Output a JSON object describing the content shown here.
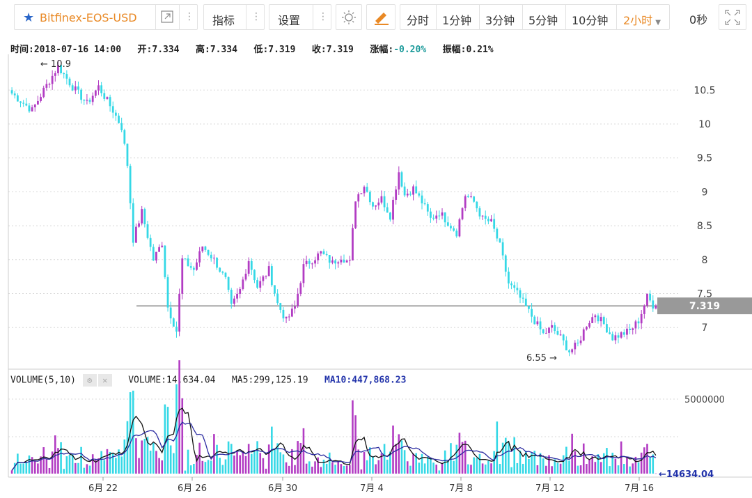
{
  "toolbar": {
    "symbol": "Bitfinex-EOS-USD",
    "indicators_label": "指标",
    "settings_label": "设置",
    "periods": [
      "分时",
      "1分钟",
      "3分钟",
      "5分钟",
      "10分钟"
    ],
    "active_period": "2小时",
    "countdown": "0秒"
  },
  "info": {
    "time_label": "时间:",
    "time": "2018-07-16 14:00",
    "open_label": "开:",
    "open": "7.334",
    "high_label": "高:",
    "high": "7.334",
    "low_label": "低:",
    "low": "7.319",
    "close_label": "收:",
    "close": "7.319",
    "change_label": "涨幅:",
    "change": "-0.20%",
    "amplitude_label": "振幅:",
    "amplitude": "0.21%"
  },
  "volume_info": {
    "title": "VOLUME(5,10)",
    "volume_label": "VOLUME:",
    "volume": "14,634.04",
    "ma5_label": "MA5:",
    "ma5": "299,125.19",
    "ma10_label": "MA10:",
    "ma10": "447,868.23"
  },
  "colors": {
    "up": "#b23cc3",
    "down": "#35d8e6",
    "accent": "#e98925",
    "ma5": "#111111",
    "ma10": "#2a2aa0"
  },
  "chart_data": {
    "type": "candlestick",
    "x_ticks": [
      "6月 22",
      "6月 26",
      "6月 30",
      "7月 4",
      "7月 8",
      "7月 12",
      "7月 16"
    ],
    "y_ticks": [
      "10.5",
      "10",
      "9.5",
      "9",
      "8.5",
      "8",
      "7.5",
      "7"
    ],
    "ylim": [
      6.55,
      10.9
    ],
    "annotations": {
      "max_label": "10.9",
      "min_label": "6.55",
      "last_price": "7.319"
    },
    "volume_ticks": [
      "5000000"
    ],
    "last_volume": "14634.04",
    "close_anchors": [
      [
        0,
        10.45
      ],
      [
        7,
        10.2
      ],
      [
        11,
        10.5
      ],
      [
        16,
        10.85
      ],
      [
        21,
        10.55
      ],
      [
        26,
        10.3
      ],
      [
        30,
        10.55
      ],
      [
        35,
        10.2
      ],
      [
        38,
        9.95
      ],
      [
        40,
        9.4
      ],
      [
        42,
        8.3
      ],
      [
        45,
        8.7
      ],
      [
        49,
        8.0
      ],
      [
        52,
        8.25
      ],
      [
        54,
        7.3
      ],
      [
        57,
        6.95
      ],
      [
        59,
        8.0
      ],
      [
        63,
        7.85
      ],
      [
        66,
        8.2
      ],
      [
        70,
        8.0
      ],
      [
        74,
        7.7
      ],
      [
        76,
        7.3
      ],
      [
        79,
        7.55
      ],
      [
        82,
        8.0
      ],
      [
        85,
        7.6
      ],
      [
        89,
        7.85
      ],
      [
        92,
        7.35
      ],
      [
        95,
        7.1
      ],
      [
        98,
        7.3
      ],
      [
        101,
        7.9
      ],
      [
        104,
        8.0
      ],
      [
        107,
        8.1
      ],
      [
        111,
        7.95
      ],
      [
        114,
        8.05
      ],
      [
        117,
        7.95
      ],
      [
        119,
        8.9
      ],
      [
        122,
        9.1
      ],
      [
        125,
        8.8
      ],
      [
        128,
        8.9
      ],
      [
        131,
        8.65
      ],
      [
        134,
        9.3
      ],
      [
        136,
        8.95
      ],
      [
        139,
        9.05
      ],
      [
        142,
        8.85
      ],
      [
        145,
        8.6
      ],
      [
        148,
        8.7
      ],
      [
        151,
        8.55
      ],
      [
        154,
        8.4
      ],
      [
        157,
        8.95
      ],
      [
        160,
        8.85
      ],
      [
        163,
        8.6
      ],
      [
        166,
        8.55
      ],
      [
        169,
        8.2
      ],
      [
        172,
        7.65
      ],
      [
        175,
        7.5
      ],
      [
        178,
        7.3
      ],
      [
        181,
        7.1
      ],
      [
        184,
        6.9
      ],
      [
        187,
        7.0
      ],
      [
        190,
        6.85
      ],
      [
        193,
        6.65
      ],
      [
        196,
        6.75
      ],
      [
        199,
        7.05
      ],
      [
        202,
        7.2
      ],
      [
        205,
        7.05
      ],
      [
        208,
        6.85
      ],
      [
        211,
        6.9
      ],
      [
        214,
        6.95
      ],
      [
        217,
        7.1
      ],
      [
        220,
        7.45
      ],
      [
        222,
        7.33
      ],
      [
        223,
        7.32
      ]
    ]
  }
}
